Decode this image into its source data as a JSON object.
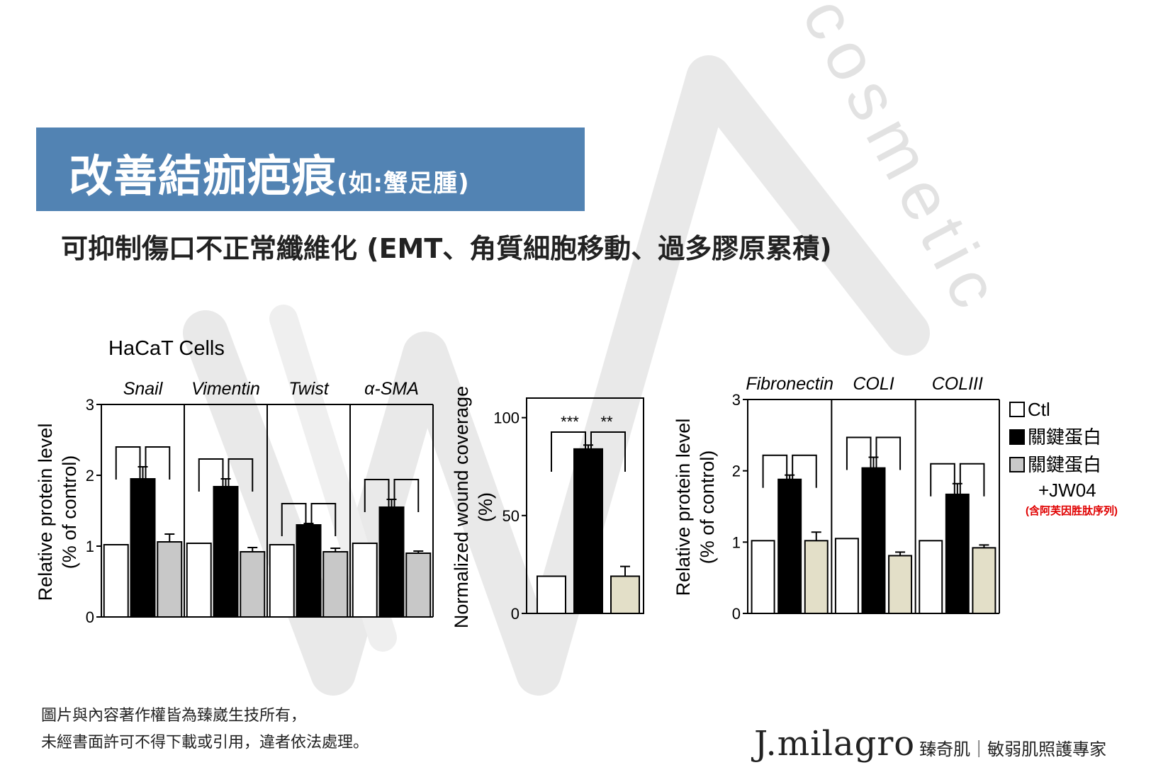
{
  "header": {
    "title": "改善結痂疤痕",
    "title_note": "(如:蟹足腫)",
    "subtitle": "可抑制傷口不正常纖維化 (EMT、角質細胞移動、過多膠原累積)"
  },
  "watermark": {
    "word": "cosmetic"
  },
  "footer": {
    "copyright_line1": "圖片與內容著作權皆為臻崴生技所有，",
    "copyright_line2": "未經書面許可不得下載或引用，違者依法處理。",
    "brand_name": "J.milagro",
    "brand_tagline": "臻奇肌｜敏弱肌照護專家"
  },
  "colors": {
    "title_bar": "#5283b3",
    "ctl": "#ffffff",
    "key_protein": "#000000",
    "jw04_left": "#c8c8c8",
    "jw04_right": "#e3dfc8",
    "note_red": "#e00000"
  },
  "chart_data": [
    {
      "type": "bar",
      "title": "HaCaT Cells",
      "ylabel": "Relative protein level (% of control)",
      "ylim": [
        0,
        3
      ],
      "yticks": [
        "0",
        "1",
        "2",
        "3"
      ],
      "panels": [
        "Snail",
        "Vimentin",
        "Twist",
        "α-SMA"
      ],
      "series": [
        {
          "name": "Ctl",
          "values": [
            1.02,
            1.04,
            1.02,
            1.04
          ],
          "errors": [
            0,
            0,
            0,
            0
          ]
        },
        {
          "name": "關鍵蛋白",
          "values": [
            1.95,
            1.84,
            1.3,
            1.55
          ],
          "errors": [
            0.17,
            0.11,
            0.02,
            0.11
          ]
        },
        {
          "name": "關鍵蛋白 +JW04",
          "values": [
            1.06,
            0.92,
            0.92,
            0.9
          ],
          "errors": [
            0.11,
            0.06,
            0.05,
            0.03
          ]
        }
      ]
    },
    {
      "type": "bar",
      "ylabel": "Normalized wound coverage (%)",
      "ylim": [
        0,
        110
      ],
      "yticks": [
        "0",
        "50",
        "100"
      ],
      "significance": [
        "***",
        "**"
      ],
      "series": [
        {
          "name": "Ctl",
          "values": [
            19
          ],
          "errors": [
            0
          ]
        },
        {
          "name": "關鍵蛋白",
          "values": [
            84
          ],
          "errors": [
            2
          ]
        },
        {
          "name": "關鍵蛋白 +JW04",
          "values": [
            19
          ],
          "errors": [
            5
          ]
        }
      ]
    },
    {
      "type": "bar",
      "ylabel": "Relative protein level (% of control)",
      "ylim": [
        0,
        3
      ],
      "yticks": [
        "0",
        "1",
        "2",
        "3"
      ],
      "panels": [
        "Fibronectin",
        "COLI",
        "COLIII"
      ],
      "series": [
        {
          "name": "Ctl",
          "values": [
            1.02,
            1.05,
            1.02
          ],
          "errors": [
            0,
            0,
            0
          ]
        },
        {
          "name": "關鍵蛋白",
          "values": [
            1.88,
            2.04,
            1.67
          ],
          "errors": [
            0.06,
            0.15,
            0.15
          ]
        },
        {
          "name": "關鍵蛋白 +JW04",
          "values": [
            1.02,
            0.81,
            0.92
          ],
          "errors": [
            0.12,
            0.05,
            0.04
          ]
        }
      ],
      "legend": {
        "items": [
          "Ctl",
          "關鍵蛋白",
          "關鍵蛋白",
          "+JW04"
        ],
        "note": "(含阿芙因胜肽序列)"
      }
    }
  ]
}
